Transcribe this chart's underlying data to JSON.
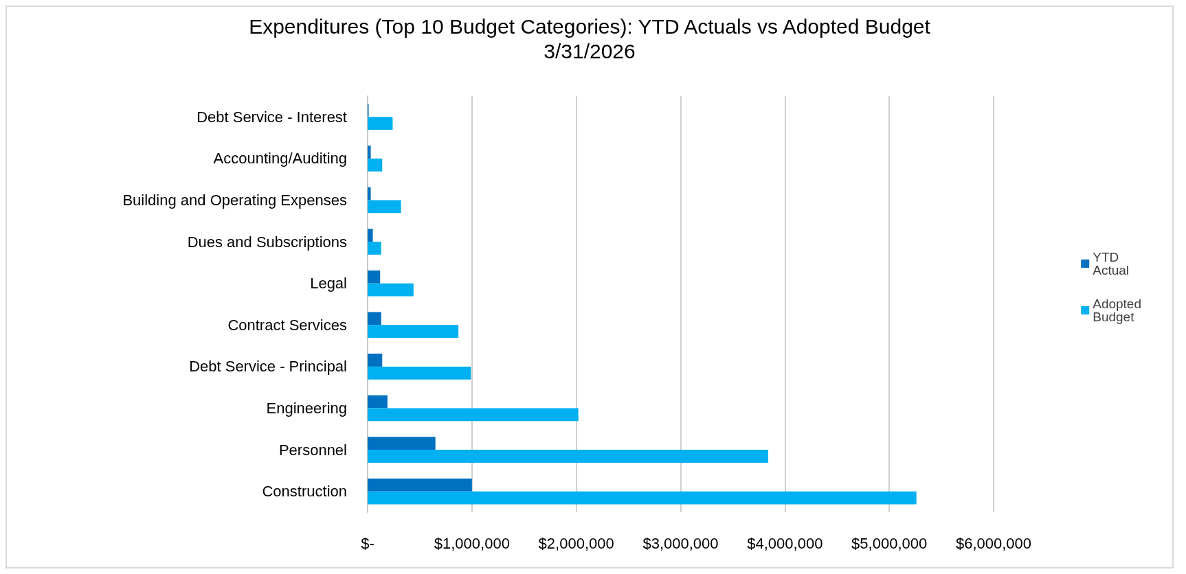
{
  "chart_data": {
    "type": "bar",
    "orientation": "horizontal",
    "title": "Expenditures (Top 10 Budget Categories): YTD Actuals vs Adopted Budget",
    "subtitle": "3/31/2026",
    "categories": [
      "Debt Service - Interest",
      "Accounting/Auditing",
      "Building and Operating Expenses",
      "Dues and Subscriptions",
      "Legal",
      "Contract Services",
      "Debt Service - Principal",
      "Engineering",
      "Personnel",
      "Construction"
    ],
    "series": [
      {
        "name": "YTD Actual",
        "color": "#0070c0",
        "values": [
          10000,
          30000,
          30000,
          50000,
          120000,
          130000,
          140000,
          190000,
          650000,
          1000000
        ]
      },
      {
        "name": "Adopted Budget",
        "color": "#00b0f0",
        "values": [
          240000,
          140000,
          320000,
          130000,
          440000,
          870000,
          990000,
          2020000,
          3840000,
          5260000
        ]
      }
    ],
    "xlim": [
      0,
      6000000
    ],
    "xticks": [
      {
        "value": 0,
        "label": "$-"
      },
      {
        "value": 1000000,
        "label": "$1,000,000"
      },
      {
        "value": 2000000,
        "label": "$2,000,000"
      },
      {
        "value": 3000000,
        "label": "$3,000,000"
      },
      {
        "value": 4000000,
        "label": "$4,000,000"
      },
      {
        "value": 5000000,
        "label": "$5,000,000"
      },
      {
        "value": 6000000,
        "label": "$6,000,000"
      }
    ],
    "grid": "x",
    "legend": "right"
  }
}
